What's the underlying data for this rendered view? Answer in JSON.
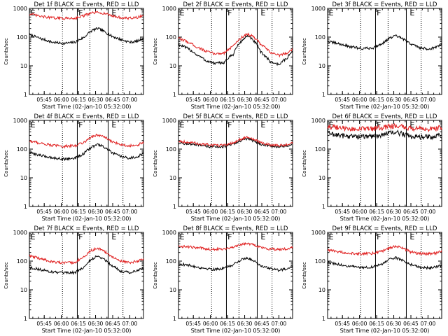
{
  "colors": {
    "events": "#000000",
    "lld": "#e02020",
    "axis": "#000000"
  },
  "chart_data": [
    {
      "type": "line",
      "title": "Det 1f BLACK = Events, RED = LLD",
      "xlabel": "Start Time (02-Jan-10 05:32:00)",
      "ylabel": "Counts/sec",
      "xscale": "time",
      "yscale": "log",
      "ylim": [
        1,
        1000
      ],
      "xticks": [
        "05:45",
        "06:00",
        "06:15",
        "06:30",
        "06:45",
        "07:00"
      ],
      "xtick_minutes": [
        13,
        28,
        43,
        58,
        73,
        88
      ],
      "xlim_minutes": [
        0,
        100
      ],
      "yticks": [
        "1",
        "10",
        "100",
        "1000"
      ],
      "markers": {
        "labels": [
          "E",
          "F",
          "E"
        ],
        "solid_minutes": [
          0,
          42,
          69
        ],
        "dotted_minutes": [
          29,
          53,
          82
        ],
        "label_minutes": [
          1,
          43,
          72
        ]
      },
      "series": [
        {
          "name": "BLACK = Events",
          "color": "black",
          "x_minutes": [
            0,
            10,
            20,
            30,
            40,
            48,
            55,
            60,
            65,
            72,
            80,
            88,
            95,
            100
          ],
          "values": [
            120,
            88,
            66,
            60,
            66,
            98,
            170,
            200,
            160,
            108,
            82,
            66,
            72,
            92
          ]
        },
        {
          "name": "RED = LLD",
          "color": "red",
          "x_minutes": [
            0,
            10,
            20,
            30,
            40,
            48,
            55,
            60,
            65,
            72,
            80,
            88,
            95,
            100
          ],
          "values": [
            640,
            520,
            470,
            450,
            460,
            560,
            690,
            720,
            680,
            560,
            470,
            450,
            490,
            560
          ]
        }
      ]
    },
    {
      "type": "line",
      "title": "Det 2f BLACK = Events, RED = LLD",
      "xlabel": "Start Time (02-Jan-10 05:32:00)",
      "ylabel": "Counts/sec",
      "xscale": "time",
      "yscale": "log",
      "ylim": [
        1,
        1000
      ],
      "xticks": [
        "05:45",
        "06:00",
        "06:15",
        "06:30",
        "06:45",
        "07:00"
      ],
      "xtick_minutes": [
        13,
        28,
        43,
        58,
        73,
        88
      ],
      "xlim_minutes": [
        0,
        100
      ],
      "yticks": [
        "1",
        "10",
        "100",
        "1000"
      ],
      "markers": {
        "labels": [
          "E",
          "F",
          "E"
        ],
        "solid_minutes": [
          0,
          42,
          69
        ],
        "dotted_minutes": [
          29,
          53,
          82
        ],
        "label_minutes": [
          1,
          43,
          72
        ]
      },
      "series": [
        {
          "name": "BLACK = Events",
          "color": "black",
          "x_minutes": [
            0,
            8,
            16,
            24,
            32,
            40,
            48,
            55,
            60,
            65,
            72,
            80,
            88,
            95,
            100
          ],
          "values": [
            55,
            40,
            24,
            15,
            12,
            13,
            25,
            70,
            110,
            80,
            30,
            14,
            11,
            18,
            32
          ]
        },
        {
          "name": "RED = LLD",
          "color": "red",
          "x_minutes": [
            0,
            8,
            16,
            24,
            32,
            40,
            48,
            55,
            60,
            65,
            72,
            80,
            88,
            95,
            100
          ],
          "values": [
            90,
            68,
            45,
            32,
            26,
            28,
            48,
            95,
            130,
            105,
            55,
            30,
            23,
            28,
            38
          ]
        }
      ]
    },
    {
      "type": "line",
      "title": "Det 3f BLACK = Events, RED = LLD",
      "xlabel": "Start Time (02-Jan-10 05:32:00)",
      "ylabel": "Counts/sec",
      "xscale": "time",
      "yscale": "log",
      "ylim": [
        1,
        1000
      ],
      "xticks": [
        "05:45",
        "06:00",
        "06:15",
        "06:30",
        "06:45",
        "07:00"
      ],
      "xtick_minutes": [
        13,
        28,
        43,
        58,
        73,
        88
      ],
      "xlim_minutes": [
        0,
        100
      ],
      "yticks": [
        "1",
        "10",
        "100",
        "1000"
      ],
      "markers": {
        "labels": [
          "E",
          "F",
          "E"
        ],
        "solid_minutes": [
          0,
          42,
          69
        ],
        "dotted_minutes": [
          29,
          53,
          82
        ],
        "label_minutes": [
          1,
          43,
          72
        ]
      },
      "series": [
        {
          "name": "BLACK = Events",
          "color": "black",
          "x_minutes": [
            0,
            10,
            20,
            30,
            40,
            48,
            55,
            60,
            65,
            72,
            80,
            88,
            95,
            100
          ],
          "values": [
            70,
            58,
            46,
            40,
            42,
            60,
            95,
            110,
            90,
            60,
            44,
            38,
            44,
            56
          ]
        }
      ]
    },
    {
      "type": "line",
      "title": "Det 4f BLACK = Events, RED = LLD",
      "xlabel": "Start Time (02-Jan-10 05:32:00)",
      "ylabel": "Counts/sec",
      "xscale": "time",
      "yscale": "log",
      "ylim": [
        1,
        1000
      ],
      "xticks": [
        "05:45",
        "06:00",
        "06:15",
        "06:30",
        "06:45",
        "07:00"
      ],
      "xtick_minutes": [
        13,
        28,
        43,
        58,
        73,
        88
      ],
      "xlim_minutes": [
        0,
        100
      ],
      "yticks": [
        "1",
        "10",
        "100",
        "1000"
      ],
      "markers": {
        "labels": [
          "E",
          "F",
          "E"
        ],
        "solid_minutes": [
          0,
          42,
          69
        ],
        "dotted_minutes": [
          29,
          53,
          82
        ],
        "label_minutes": [
          1,
          43,
          72
        ]
      },
      "series": [
        {
          "name": "BLACK = Events",
          "color": "black",
          "x_minutes": [
            0,
            10,
            20,
            30,
            40,
            48,
            55,
            60,
            65,
            72,
            80,
            88,
            95,
            100
          ],
          "values": [
            75,
            60,
            50,
            45,
            48,
            70,
            120,
            145,
            120,
            75,
            55,
            48,
            55,
            70
          ]
        },
        {
          "name": "RED = LLD",
          "color": "red",
          "x_minutes": [
            0,
            10,
            20,
            30,
            40,
            48,
            55,
            60,
            65,
            72,
            80,
            88,
            95,
            100
          ],
          "values": [
            190,
            160,
            135,
            125,
            130,
            175,
            270,
            310,
            270,
            180,
            145,
            130,
            140,
            170
          ]
        }
      ]
    },
    {
      "type": "line",
      "title": "Det 5f BLACK = Events, RED = LLD",
      "xlabel": "Start Time (02-Jan-10 05:32:00)",
      "ylabel": "Counts/sec",
      "xscale": "time",
      "yscale": "log",
      "ylim": [
        1,
        1000
      ],
      "xticks": [
        "05:45",
        "06:00",
        "06:15",
        "06:30",
        "06:45",
        "07:00"
      ],
      "xtick_minutes": [
        13,
        28,
        43,
        58,
        73,
        88
      ],
      "xlim_minutes": [
        0,
        100
      ],
      "yticks": [
        "1",
        "10",
        "100",
        "1000"
      ],
      "markers": {
        "labels": [
          "E",
          "F",
          "E"
        ],
        "solid_minutes": [
          0,
          42,
          69
        ],
        "dotted_minutes": [
          29,
          53,
          82
        ],
        "label_minutes": [
          1,
          43,
          72
        ]
      },
      "series": [
        {
          "name": "BLACK = Events",
          "color": "black",
          "x_minutes": [
            0,
            10,
            20,
            30,
            40,
            48,
            55,
            60,
            65,
            72,
            80,
            88,
            95,
            100
          ],
          "values": [
            165,
            150,
            130,
            120,
            122,
            150,
            200,
            230,
            200,
            150,
            128,
            120,
            130,
            145
          ]
        },
        {
          "name": "RED = LLD",
          "color": "red",
          "x_minutes": [
            0,
            10,
            20,
            30,
            40,
            48,
            55,
            60,
            65,
            72,
            80,
            88,
            95,
            100
          ],
          "values": [
            190,
            170,
            150,
            135,
            138,
            165,
            225,
            255,
            225,
            165,
            140,
            132,
            145,
            160
          ]
        }
      ]
    },
    {
      "type": "line",
      "title": "Det 6f BLACK = Events, RED = LLD",
      "xlabel": "Start Time (02-Jan-10 05:32:00)",
      "ylabel": "Counts/sec",
      "xscale": "time",
      "yscale": "log",
      "ylim": [
        1,
        1000
      ],
      "xticks": [
        "05:45",
        "06:00",
        "06:15",
        "06:30",
        "06:45",
        "07:00"
      ],
      "xtick_minutes": [
        13,
        28,
        43,
        58,
        73,
        88
      ],
      "xlim_minutes": [
        0,
        100
      ],
      "yticks": [
        "1",
        "10",
        "100",
        "1000"
      ],
      "markers": {
        "labels": [
          "E",
          "F",
          "E"
        ],
        "solid_minutes": [
          0,
          42,
          69
        ],
        "dotted_minutes": [
          29,
          53,
          82
        ],
        "label_minutes": [
          1,
          43,
          72
        ]
      },
      "series": [
        {
          "name": "BLACK = Events",
          "color": "black",
          "x_minutes": [
            0,
            10,
            20,
            30,
            40,
            48,
            55,
            60,
            65,
            72,
            80,
            88,
            95,
            100
          ],
          "values": [
            360,
            300,
            280,
            270,
            280,
            320,
            360,
            380,
            340,
            290,
            270,
            260,
            280,
            300
          ]
        },
        {
          "name": "RED = LLD",
          "color": "red",
          "x_minutes": [
            0,
            10,
            20,
            30,
            40,
            48,
            55,
            60,
            65,
            72,
            80,
            88,
            95,
            100
          ],
          "values": [
            620,
            540,
            510,
            500,
            510,
            560,
            620,
            650,
            600,
            530,
            500,
            490,
            520,
            560
          ]
        }
      ]
    },
    {
      "type": "line",
      "title": "Det 7f BLACK = Events, RED = LLD",
      "xlabel": "Start Time (02-Jan-10 05:32:00)",
      "ylabel": "Counts/sec",
      "xscale": "time",
      "yscale": "log",
      "ylim": [
        1,
        1000
      ],
      "xticks": [
        "05:45",
        "06:00",
        "06:15",
        "06:30",
        "06:45",
        "07:00"
      ],
      "xtick_minutes": [
        13,
        28,
        43,
        58,
        73,
        88
      ],
      "xlim_minutes": [
        0,
        100
      ],
      "yticks": [
        "1",
        "10",
        "100",
        "1000"
      ],
      "markers": {
        "labels": [
          "E",
          "F",
          "E"
        ],
        "solid_minutes": [
          0,
          42,
          69
        ],
        "dotted_minutes": [
          29,
          53,
          82
        ],
        "label_minutes": [
          1,
          43,
          72
        ]
      },
      "series": [
        {
          "name": "BLACK = Events",
          "color": "black",
          "x_minutes": [
            0,
            10,
            20,
            30,
            40,
            48,
            55,
            60,
            65,
            72,
            80,
            88,
            95,
            100
          ],
          "values": [
            60,
            50,
            42,
            38,
            40,
            60,
            120,
            150,
            120,
            70,
            45,
            40,
            48,
            58
          ]
        },
        {
          "name": "RED = LLD",
          "color": "red",
          "x_minutes": [
            0,
            10,
            20,
            30,
            40,
            48,
            55,
            60,
            65,
            72,
            80,
            88,
            95,
            100
          ],
          "values": [
            150,
            120,
            95,
            85,
            90,
            140,
            240,
            280,
            230,
            140,
            100,
            88,
            100,
            120
          ]
        }
      ]
    },
    {
      "type": "line",
      "title": "Det 8f BLACK = Events, RED = LLD",
      "xlabel": "Start Time (02-Jan-10 05:32:00)",
      "ylabel": "Counts/sec",
      "xscale": "time",
      "yscale": "log",
      "ylim": [
        1,
        1000
      ],
      "xticks": [
        "05:45",
        "06:00",
        "06:15",
        "06:30",
        "06:45",
        "07:00"
      ],
      "xtick_minutes": [
        13,
        28,
        43,
        58,
        73,
        88
      ],
      "xlim_minutes": [
        0,
        100
      ],
      "yticks": [
        "1",
        "10",
        "100",
        "1000"
      ],
      "markers": {
        "labels": [
          "E",
          "F",
          "E"
        ],
        "solid_minutes": [
          0,
          42,
          69
        ],
        "dotted_minutes": [
          29,
          53,
          82
        ],
        "label_minutes": [
          1,
          43,
          72
        ]
      },
      "series": [
        {
          "name": "BLACK = Events",
          "color": "black",
          "x_minutes": [
            0,
            10,
            20,
            30,
            40,
            48,
            55,
            60,
            65,
            72,
            80,
            88,
            95,
            100
          ],
          "values": [
            80,
            70,
            58,
            52,
            55,
            75,
            110,
            130,
            110,
            70,
            55,
            48,
            55,
            68
          ]
        },
        {
          "name": "RED = LLD",
          "color": "red",
          "x_minutes": [
            0,
            10,
            20,
            30,
            40,
            48,
            55,
            60,
            65,
            72,
            80,
            88,
            95,
            100
          ],
          "values": [
            330,
            310,
            280,
            260,
            265,
            310,
            380,
            410,
            380,
            300,
            265,
            255,
            270,
            300
          ]
        }
      ]
    },
    {
      "type": "line",
      "title": "Det 9f BLACK = Events, RED = LLD",
      "xlabel": "Start Time (02-Jan-10 05:32:00)",
      "ylabel": "Counts/sec",
      "xscale": "time",
      "yscale": "log",
      "ylim": [
        1,
        1000
      ],
      "xticks": [
        "05:45",
        "06:00",
        "06:15",
        "06:30",
        "06:45",
        "07:00"
      ],
      "xtick_minutes": [
        13,
        28,
        43,
        58,
        73,
        88
      ],
      "xlim_minutes": [
        0,
        100
      ],
      "yticks": [
        "1",
        "10",
        "100",
        "1000"
      ],
      "markers": {
        "labels": [
          "E",
          "F",
          "E"
        ],
        "solid_minutes": [
          0,
          42,
          69
        ],
        "dotted_minutes": [
          29,
          53,
          82
        ],
        "label_minutes": [
          1,
          43,
          72
        ]
      },
      "series": [
        {
          "name": "BLACK = Events",
          "color": "black",
          "x_minutes": [
            0,
            10,
            20,
            30,
            40,
            48,
            55,
            60,
            65,
            72,
            80,
            88,
            95,
            100
          ],
          "values": [
            90,
            75,
            65,
            60,
            62,
            80,
            115,
            130,
            110,
            78,
            62,
            58,
            62,
            72
          ]
        },
        {
          "name": "RED = LLD",
          "color": "red",
          "x_minutes": [
            0,
            10,
            20,
            30,
            40,
            48,
            55,
            60,
            65,
            72,
            80,
            88,
            95,
            100
          ],
          "values": [
            240,
            210,
            190,
            180,
            185,
            220,
            290,
            330,
            290,
            210,
            185,
            180,
            190,
            215
          ]
        }
      ]
    }
  ]
}
